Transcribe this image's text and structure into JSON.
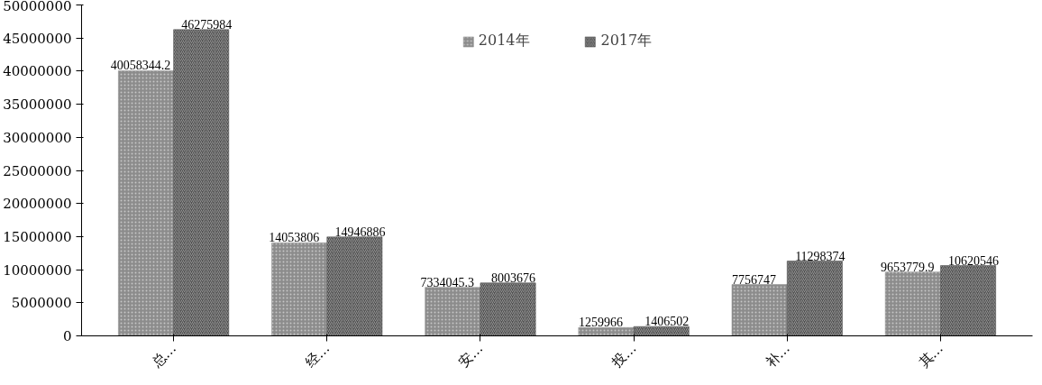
{
  "chart_data": {
    "type": "bar",
    "categories": [
      "总…",
      "经…",
      "安…",
      "投…",
      "补…",
      "其…"
    ],
    "series": [
      {
        "name": "2014年",
        "color": "#8c8c8c",
        "values": [
          40058344.2,
          14053806,
          7334045.3,
          1259966,
          7756747,
          9653779.9
        ]
      },
      {
        "name": "2017年",
        "color": "#4d4d4d",
        "values": [
          46275984,
          14946886,
          8003676,
          1406502,
          11298374,
          10620546
        ]
      }
    ],
    "ylim": [
      0,
      50000000
    ],
    "yticks": [
      0,
      5000000,
      10000000,
      15000000,
      20000000,
      25000000,
      30000000,
      35000000,
      40000000,
      45000000,
      50000000
    ],
    "data_labels": true,
    "grid": false,
    "legend": "top"
  }
}
